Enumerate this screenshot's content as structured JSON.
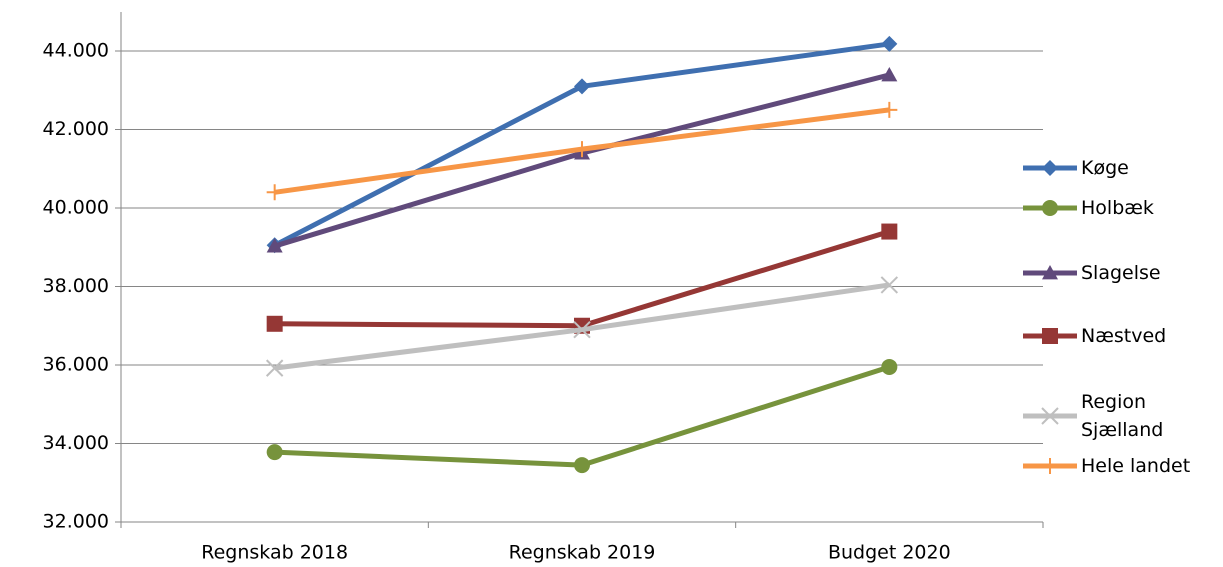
{
  "chart_data": {
    "type": "line",
    "categories": [
      "Regnskab 2018",
      "Regnskab 2019",
      "Budget 2020"
    ],
    "series": [
      {
        "name": "Køge",
        "color": "#3f6fb0",
        "marker": "diamond",
        "values": [
          39050,
          43100,
          44180
        ]
      },
      {
        "name": "Holbæk",
        "color": "#77933c",
        "marker": "circle",
        "values": [
          33780,
          33450,
          35950
        ]
      },
      {
        "name": "Slagelse",
        "color": "#604a7b",
        "marker": "triangle",
        "values": [
          39030,
          41400,
          43390
        ]
      },
      {
        "name": "Næstved",
        "color": "#953735",
        "marker": "square",
        "values": [
          37050,
          37000,
          39400
        ]
      },
      {
        "name": "Region Sjælland",
        "color": "#bfbfbf",
        "marker": "x",
        "values": [
          35920,
          36900,
          38040
        ]
      },
      {
        "name": "Hele landet",
        "color": "#f79646",
        "marker": "plus",
        "values": [
          40400,
          41500,
          42500
        ]
      }
    ],
    "ylim": [
      32000,
      44000
    ],
    "yticks": [
      {
        "value": 32000,
        "label": "32.000"
      },
      {
        "value": 34000,
        "label": "34.000"
      },
      {
        "value": 36000,
        "label": "36.000"
      },
      {
        "value": 38000,
        "label": "38.000"
      },
      {
        "value": 40000,
        "label": "40.000"
      },
      {
        "value": 42000,
        "label": "42.000"
      },
      {
        "value": 44000,
        "label": "44.000"
      }
    ],
    "grid": true,
    "legend": "right"
  }
}
